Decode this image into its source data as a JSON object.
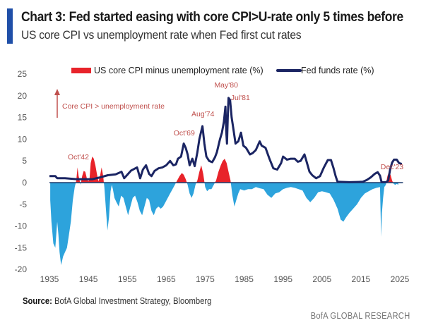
{
  "header": {
    "title": "Chart 3: Fed started easing with core CPI>U-rate only 5 times before",
    "subtitle": "US core CPI vs unemployment rate when Fed first cut rates"
  },
  "footer": {
    "source_label": "Source:",
    "source_text": "BofA Global Investment Strategy, Bloomberg",
    "brand": "BofA GLOBAL RESEARCH"
  },
  "colors": {
    "title_bar": "#1f4fa8",
    "positive_area": "#e8232a",
    "negative_area": "#2da3dc",
    "fed_funds_line": "#1b2563",
    "annotation": "#c0504d",
    "zero_line": "#1b3a6b"
  },
  "chart_data": {
    "type": "area",
    "title": "Chart 3: Fed started easing with core CPI>U-rate only 5 times before",
    "subtitle": "US core CPI vs unemployment rate when Fed first cut rates",
    "xlabel": "",
    "ylabel": "",
    "xlim": [
      1935,
      2026
    ],
    "ylim": [
      -20,
      25
    ],
    "x_ticks": [
      "1935",
      "1945",
      "1955",
      "1965",
      "1975",
      "1985",
      "1995",
      "2005",
      "2015",
      "2025"
    ],
    "y_ticks": [
      "25",
      "20",
      "15",
      "10",
      "5",
      "0",
      "-5",
      "-10",
      "-15",
      "-20"
    ],
    "grid": false,
    "legend": {
      "placement": "top",
      "entries": [
        "US core CPI minus unemployment rate (%)",
        "Fed funds rate (%)"
      ]
    },
    "series": [
      {
        "name": "US core CPI minus unemployment rate (%)",
        "kind": "area",
        "x": [
          1935.2,
          1935.5,
          1936.0,
          1936.5,
          1937.0,
          1937.3,
          1937.6,
          1938.0,
          1938.5,
          1939.0,
          1939.5,
          1940.0,
          1940.5,
          1941.0,
          1941.5,
          1941.9,
          1942.2,
          1942.5,
          1942.8,
          1943.0,
          1943.4,
          1943.8,
          1944.2,
          1944.6,
          1945.0,
          1945.3,
          1945.6,
          1946.0,
          1946.4,
          1946.8,
          1947.2,
          1947.6,
          1948.0,
          1948.4,
          1948.8,
          1949.1,
          1949.5,
          1949.9,
          1950.3,
          1950.7,
          1951.0,
          1951.3,
          1951.7,
          1952.2,
          1952.8,
          1953.4,
          1954.0,
          1954.6,
          1955.2,
          1955.8,
          1956.4,
          1957.0,
          1957.6,
          1958.2,
          1958.8,
          1959.4,
          1960.0,
          1960.6,
          1961.2,
          1961.8,
          1962.4,
          1963.0,
          1963.6,
          1964.2,
          1964.8,
          1965.4,
          1966.0,
          1966.6,
          1967.2,
          1967.8,
          1968.4,
          1969.0,
          1969.5,
          1970.0,
          1970.5,
          1971.0,
          1971.5,
          1972.0,
          1972.5,
          1973.0,
          1973.5,
          1974.0,
          1974.5,
          1975.0,
          1975.5,
          1976.0,
          1976.6,
          1977.2,
          1977.8,
          1978.4,
          1979.0,
          1979.5,
          1980.0,
          1980.5,
          1981.0,
          1981.5,
          1982.0,
          1982.5,
          1983.0,
          1983.5,
          1984.0,
          1985.0,
          1986.0,
          1987.0,
          1988.0,
          1989.0,
          1990.0,
          1991.0,
          1992.0,
          1993.0,
          1994.0,
          1995.0,
          1996.0,
          1997.0,
          1998.0,
          1999.0,
          2000.0,
          2001.0,
          2002.0,
          2003.0,
          2004.0,
          2005.0,
          2006.0,
          2007.0,
          2008.0,
          2009.0,
          2009.8,
          2010.5,
          2011.2,
          2012.0,
          2013.0,
          2014.0,
          2015.0,
          2016.0,
          2017.0,
          2018.0,
          2019.0,
          2019.9,
          2020.2,
          2020.4,
          2020.7,
          2021.0,
          2021.4,
          2021.8,
          2022.2,
          2022.6,
          2023.0,
          2023.4,
          2023.8,
          2024.2,
          2024.6
        ],
        "values": [
          -4,
          -9,
          -14,
          -15,
          -9,
          -12,
          -16,
          -19,
          -17,
          -16,
          -15,
          -12,
          -9,
          -4,
          -1,
          0.5,
          3.5,
          1.5,
          0.3,
          -0.5,
          1.5,
          2.7,
          2.5,
          1.0,
          0.3,
          1.0,
          4.5,
          6.0,
          5.5,
          4.0,
          2.0,
          0.3,
          1.5,
          3.5,
          1.5,
          -1.0,
          -6,
          -11,
          -8,
          -2,
          -0.5,
          -1.5,
          -3.5,
          -4.5,
          -5.5,
          -3,
          -3.5,
          -5.5,
          -7.5,
          -5.5,
          -3.5,
          -3,
          -4.5,
          -6.5,
          -7.5,
          -5.5,
          -3.5,
          -4,
          -6.5,
          -7.5,
          -6,
          -5.5,
          -6,
          -5.5,
          -4.5,
          -3.5,
          -2.5,
          -1.5,
          -0.5,
          0.5,
          1.5,
          2.2,
          1.8,
          0.8,
          -0.5,
          -2.5,
          -3.5,
          -2.5,
          -0.5,
          0.5,
          2.5,
          4.0,
          2.0,
          -1.0,
          -2.0,
          -1.5,
          -1.5,
          -0.5,
          0.5,
          2.5,
          4.0,
          5.0,
          5.5,
          4.5,
          2.5,
          0.5,
          -3.0,
          -5.5,
          -4.0,
          -2.5,
          -1.5,
          -1.8,
          -1.5,
          -1.5,
          -1.0,
          -1.3,
          -1.5,
          -2.8,
          -3.5,
          -2.5,
          -2.2,
          -1.5,
          -1.2,
          -1.0,
          -1.2,
          -1.5,
          -1.8,
          -3.5,
          -4.5,
          -3.5,
          -2.2,
          -2.0,
          -2.2,
          -2.5,
          -4.0,
          -6.0,
          -8.5,
          -9.0,
          -8.0,
          -7.0,
          -6.0,
          -5.0,
          -3.5,
          -2.5,
          -2.0,
          -1.5,
          -1.2,
          -1.0,
          -12.5,
          -7.0,
          -3.5,
          -1.0,
          -0.5,
          1.5,
          2.5,
          1.8,
          0.5,
          -0.3,
          -0.5,
          -0.3,
          -0.5
        ]
      },
      {
        "name": "Fed funds rate (%)",
        "kind": "line",
        "x": [
          1935.0,
          1936.5,
          1937.0,
          1939.0,
          1942.0,
          1946.0,
          1948.0,
          1950.0,
          1952.0,
          1953.5,
          1954.2,
          1955.0,
          1956.0,
          1957.5,
          1958.3,
          1959.0,
          1959.8,
          1960.6,
          1961.2,
          1962.0,
          1963.0,
          1964.0,
          1965.0,
          1966.0,
          1966.8,
          1967.5,
          1968.0,
          1968.8,
          1969.5,
          1970.0,
          1970.5,
          1971.0,
          1971.7,
          1972.3,
          1973.0,
          1973.5,
          1974.3,
          1974.8,
          1975.3,
          1976.0,
          1976.8,
          1977.5,
          1978.0,
          1978.8,
          1979.3,
          1979.8,
          1980.2,
          1980.4,
          1980.6,
          1980.8,
          1981.0,
          1981.4,
          1981.8,
          1982.3,
          1982.8,
          1983.5,
          1984.2,
          1984.8,
          1985.5,
          1986.5,
          1987.2,
          1988.0,
          1989.0,
          1989.5,
          1990.5,
          1991.5,
          1992.5,
          1993.5,
          1994.5,
          1995.0,
          1996.0,
          1997.0,
          1998.0,
          1998.8,
          1999.5,
          2000.5,
          2001.0,
          2001.8,
          2002.5,
          2003.5,
          2004.5,
          2005.5,
          2006.5,
          2007.3,
          2007.9,
          2008.5,
          2009.0,
          2012.0,
          2015.5,
          2016.5,
          2017.5,
          2018.5,
          2019.3,
          2019.9,
          2020.3,
          2021.5,
          2022.0,
          2022.5,
          2023.0,
          2023.5,
          2024.2,
          2024.8,
          2025.5
        ],
        "values": [
          1.5,
          1.5,
          1.0,
          1.0,
          0.8,
          0.8,
          1.2,
          1.7,
          1.9,
          2.5,
          1.0,
          1.8,
          2.8,
          3.5,
          1.0,
          3.0,
          4.0,
          2.0,
          1.5,
          2.7,
          3.3,
          3.5,
          4.0,
          5.0,
          4.0,
          4.2,
          5.5,
          6.0,
          9.0,
          8.0,
          6.5,
          4.0,
          5.5,
          3.8,
          7.0,
          10.0,
          13.0,
          9.0,
          6.0,
          5.0,
          4.7,
          5.8,
          7.0,
          10.0,
          11.5,
          14.0,
          17.5,
          12.0,
          9.0,
          15.0,
          19.5,
          19.0,
          15.0,
          12.0,
          9.0,
          9.5,
          11.5,
          8.5,
          8.0,
          6.5,
          6.8,
          7.5,
          9.5,
          8.5,
          8.0,
          5.5,
          3.3,
          3.0,
          4.5,
          6.0,
          5.3,
          5.5,
          5.5,
          4.8,
          5.0,
          6.5,
          5.0,
          2.5,
          1.7,
          1.0,
          1.5,
          3.5,
          5.2,
          5.2,
          3.5,
          1.5,
          0.2,
          0.1,
          0.2,
          0.6,
          1.2,
          2.0,
          2.4,
          1.6,
          0.1,
          0.1,
          0.5,
          3.0,
          4.6,
          5.3,
          5.3,
          4.5,
          4.3
        ]
      }
    ],
    "annotations": [
      {
        "label": "Oct'42",
        "x": 1942.8
      },
      {
        "label": "Oct'69",
        "x": 1969.8
      },
      {
        "label": "Aug'74",
        "x": 1974.6
      },
      {
        "label": "May'80",
        "x": 1980.4
      },
      {
        "label": "Jul'81",
        "x": 1981.5
      },
      {
        "label": "Dec'23",
        "x": 2023.9
      },
      {
        "label": "Core CPI > unemployment rate",
        "type": "arrow-up"
      }
    ]
  }
}
